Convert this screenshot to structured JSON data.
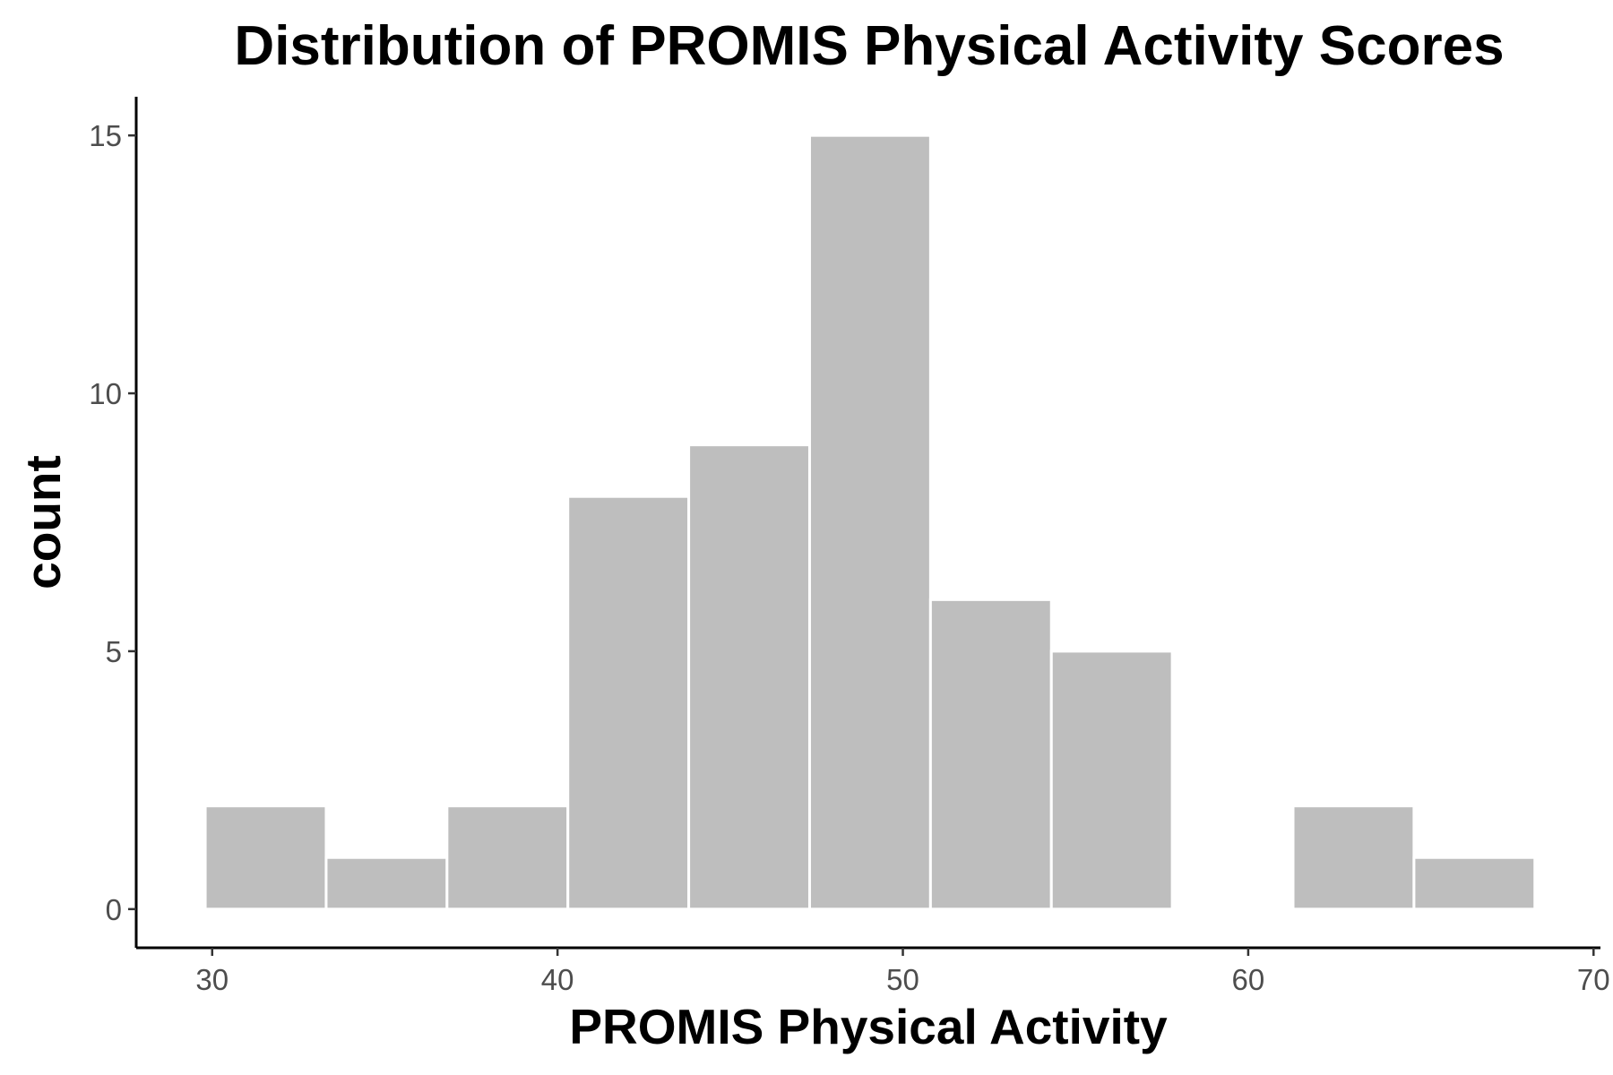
{
  "chart_data": {
    "type": "bar",
    "title": "Distribution of PROMIS Physical Activity Scores",
    "xlabel": "PROMIS Physical Activity",
    "ylabel": "count",
    "bin_width": 3.5,
    "bins": [
      {
        "x0": 29.8,
        "x1": 33.3,
        "count": 2
      },
      {
        "x0": 33.3,
        "x1": 36.8,
        "count": 1
      },
      {
        "x0": 36.8,
        "x1": 40.3,
        "count": 2
      },
      {
        "x0": 40.3,
        "x1": 43.8,
        "count": 8
      },
      {
        "x0": 43.8,
        "x1": 47.3,
        "count": 9
      },
      {
        "x0": 47.3,
        "x1": 50.8,
        "count": 15
      },
      {
        "x0": 50.8,
        "x1": 54.3,
        "count": 6
      },
      {
        "x0": 54.3,
        "x1": 57.8,
        "count": 5
      },
      {
        "x0": 57.8,
        "x1": 61.3,
        "count": 0
      },
      {
        "x0": 61.3,
        "x1": 64.8,
        "count": 2
      },
      {
        "x0": 64.8,
        "x1": 68.3,
        "count": 1
      }
    ],
    "xlim": [
      27.8,
      70.2
    ],
    "ylim": [
      -0.75,
      15.75
    ],
    "x_ticks": [
      30,
      40,
      50,
      60,
      70
    ],
    "y_ticks": [
      0,
      5,
      10,
      15
    ],
    "bar_color": "#bebebe",
    "grid": false,
    "legend": "none"
  }
}
